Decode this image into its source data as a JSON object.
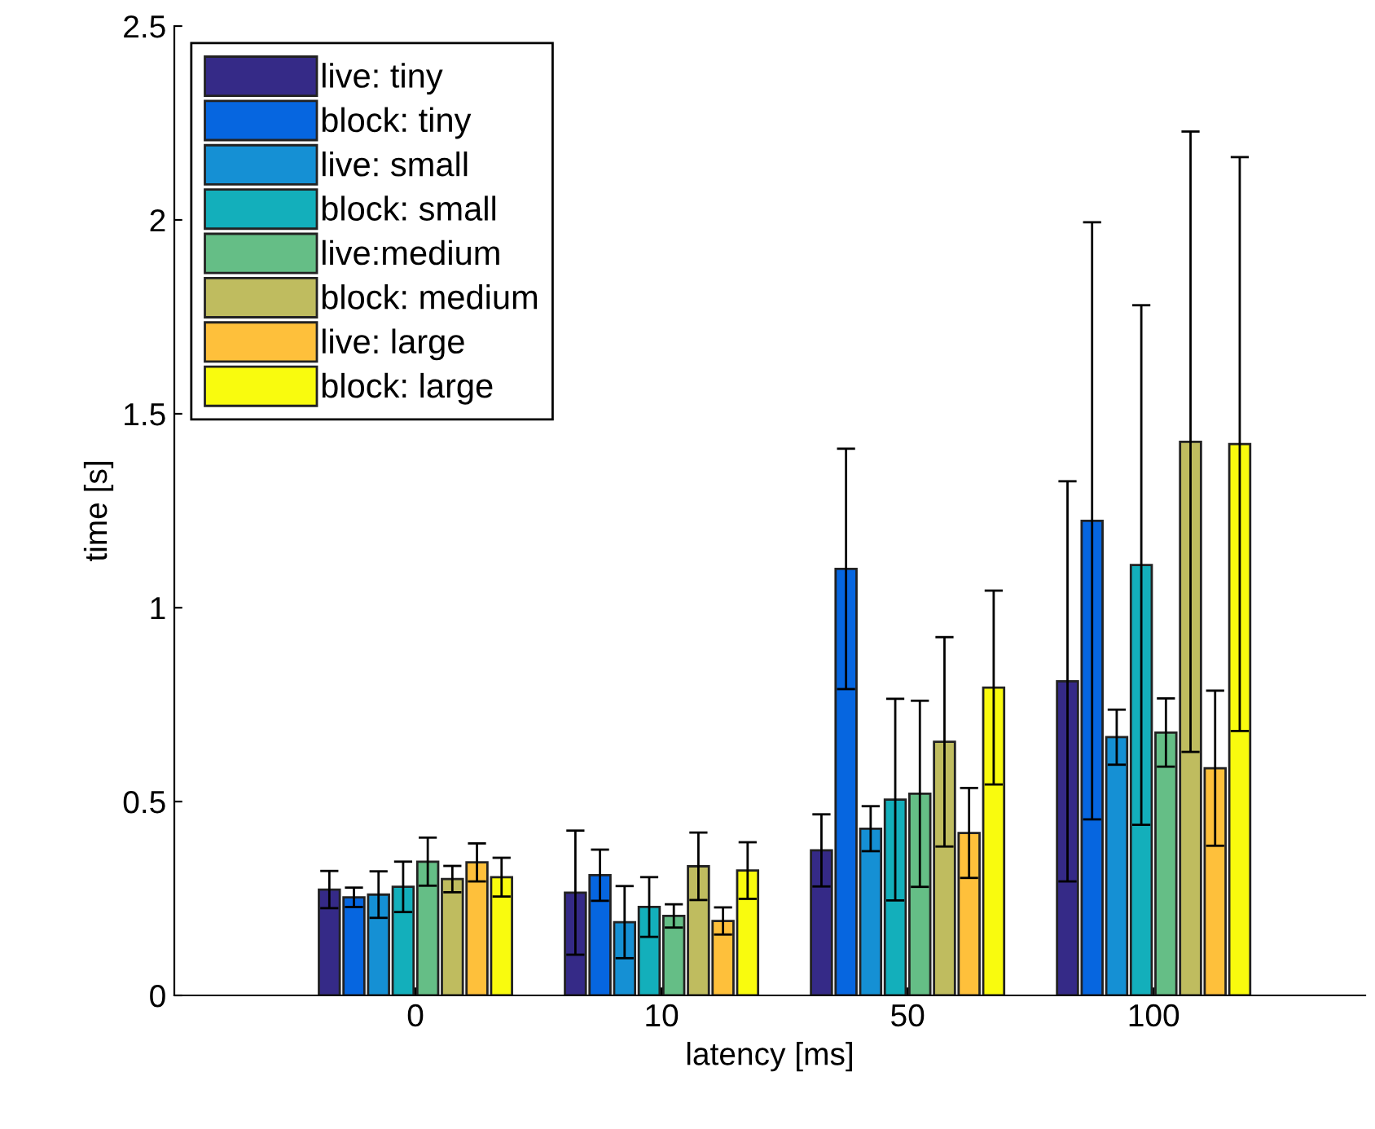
{
  "chart_data": {
    "type": "bar",
    "xlabel": "latency [ms]",
    "ylabel": "time [s]",
    "categories": [
      "0",
      "10",
      "50",
      "100"
    ],
    "ylim": [
      0,
      2.5
    ],
    "yticks": [
      0,
      0.5,
      1,
      1.5,
      2,
      2.5
    ],
    "grid": false,
    "legend": "top left",
    "series": [
      {
        "name": "live: tiny",
        "color": "#352a87",
        "values": [
          0.273,
          0.265,
          0.374,
          0.81
        ],
        "errors": [
          0.048,
          0.16,
          0.093,
          0.516
        ]
      },
      {
        "name": "block: tiny",
        "color": "#0666e0",
        "values": [
          0.253,
          0.31,
          1.1,
          1.224
        ],
        "errors": [
          0.025,
          0.066,
          0.31,
          0.77
        ]
      },
      {
        "name": "live: small",
        "color": "#1590d4",
        "values": [
          0.26,
          0.189,
          0.43,
          0.666
        ],
        "errors": [
          0.06,
          0.093,
          0.058,
          0.071
        ]
      },
      {
        "name": "block: small",
        "color": "#13afbb",
        "values": [
          0.28,
          0.228,
          0.505,
          1.11
        ],
        "errors": [
          0.065,
          0.077,
          0.26,
          0.67
        ]
      },
      {
        "name": "live:medium",
        "color": "#65be86",
        "values": [
          0.345,
          0.205,
          0.52,
          0.678
        ],
        "errors": [
          0.062,
          0.03,
          0.24,
          0.088
        ]
      },
      {
        "name": "block: medium",
        "color": "#bfbc5f",
        "values": [
          0.3,
          0.333,
          0.654,
          1.428
        ],
        "errors": [
          0.034,
          0.087,
          0.27,
          0.8
        ]
      },
      {
        "name": "live: large",
        "color": "#fec03b",
        "values": [
          0.343,
          0.192,
          0.419,
          0.586
        ],
        "errors": [
          0.049,
          0.035,
          0.116,
          0.2
        ]
      },
      {
        "name": "block: large",
        "color": "#f9fb0e",
        "values": [
          0.305,
          0.322,
          0.794,
          1.422
        ],
        "errors": [
          0.05,
          0.073,
          0.25,
          0.74
        ]
      }
    ]
  }
}
